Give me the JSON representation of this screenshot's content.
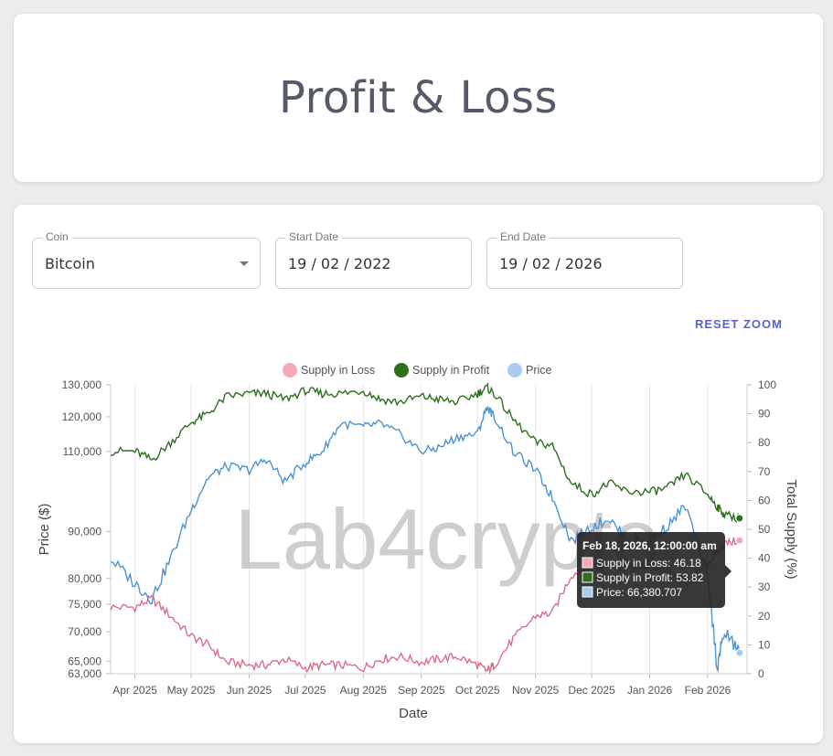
{
  "header": {
    "title": "Profit & Loss"
  },
  "filters": {
    "coin": {
      "label": "Coin",
      "value": "Bitcoin"
    },
    "start_date": {
      "label": "Start Date",
      "value": "19 / 02 / 2022"
    },
    "end_date": {
      "label": "End Date",
      "value": "19 / 02 / 2026"
    }
  },
  "reset_zoom_label": "RESET ZOOM",
  "watermark": "Lab4crypto",
  "tooltip": {
    "title": "Feb 18, 2026, 12:00:00 am",
    "lines": [
      "Supply in Loss: 46.18",
      "Supply in Profit: 53.82",
      "Price: 66,380.707"
    ]
  },
  "colors": {
    "loss": "#dc6e86",
    "profit": "#2d6f1c",
    "price": "#4d93d2",
    "loss_legend": "#f4a9b8",
    "profit_legend": "#2d6f1c",
    "price_legend": "#a9cbef"
  },
  "chart_data": {
    "type": "line",
    "xlabel": "Date",
    "ylabel_left": "Price ($)",
    "ylabel_right": "Total Supply (%)",
    "x_ticks": [
      "Apr 2025",
      "May 2025",
      "Jun 2025",
      "Jul 2025",
      "Aug 2025",
      "Sep 2025",
      "Oct 2025",
      "Nov 2025",
      "Dec 2025",
      "Jan 2026",
      "Feb 2026"
    ],
    "y_left_ticks": [
      63000,
      65000,
      70000,
      75000,
      80000,
      90000,
      110000,
      120000,
      130000
    ],
    "y_left_tick_labels": [
      "63,000",
      "65,000",
      "70,000",
      "75,000",
      "80,000",
      "90,000",
      "110,000",
      "120,000",
      "130,000"
    ],
    "y_left_scale": "log",
    "y_left_range": [
      63000,
      130000
    ],
    "y_right_ticks": [
      0,
      10,
      20,
      30,
      40,
      50,
      60,
      70,
      80,
      90,
      100
    ],
    "y_right_range": [
      0,
      100
    ],
    "legend": [
      "Supply in Loss",
      "Supply in Profit",
      "Price"
    ],
    "legend_position": "top",
    "grid": "vertical",
    "x": [
      "2025-03-19",
      "2025-04-01",
      "2025-04-10",
      "2025-04-20",
      "2025-05-01",
      "2025-05-10",
      "2025-05-20",
      "2025-06-01",
      "2025-06-10",
      "2025-06-20",
      "2025-07-01",
      "2025-07-10",
      "2025-07-20",
      "2025-08-01",
      "2025-08-10",
      "2025-08-20",
      "2025-09-01",
      "2025-09-10",
      "2025-09-20",
      "2025-10-01",
      "2025-10-06",
      "2025-10-10",
      "2025-10-20",
      "2025-11-01",
      "2025-11-10",
      "2025-11-20",
      "2025-12-01",
      "2025-12-10",
      "2025-12-20",
      "2026-01-01",
      "2026-01-10",
      "2026-01-20",
      "2026-02-01",
      "2026-02-06",
      "2026-02-10",
      "2026-02-18"
    ],
    "series": [
      {
        "name": "Supply in Loss",
        "axis": "right",
        "values": [
          23,
          23,
          26,
          20,
          13,
          10,
          4,
          3,
          3,
          5,
          2,
          3,
          3,
          2,
          5,
          6,
          4,
          5,
          6,
          3,
          1,
          3,
          12,
          20,
          21,
          34,
          38,
          34,
          37,
          37,
          36,
          31,
          38,
          42,
          45,
          46.18
        ]
      },
      {
        "name": "Supply in Profit",
        "axis": "left",
        "values": [
          77,
          77,
          74,
          80,
          87,
          90,
          96,
          97,
          97,
          95,
          98,
          97,
          97,
          98,
          95,
          94,
          96,
          95,
          94,
          97,
          99,
          97,
          88,
          80,
          79,
          66,
          62,
          66,
          63,
          63,
          64,
          69,
          62,
          58,
          55,
          53.82
        ]
      },
      {
        "name": "Price",
        "axis": "left",
        "values": [
          84000,
          79000,
          76000,
          84000,
          95000,
          103000,
          106000,
          105000,
          108000,
          102000,
          107000,
          110000,
          118000,
          117000,
          118000,
          115000,
          110000,
          111000,
          114000,
          115000,
          123000,
          120000,
          110000,
          105000,
          98000,
          88000,
          91000,
          93000,
          88000,
          88000,
          91000,
          96000,
          80000,
          64000,
          70000,
          66380.707
        ]
      }
    ]
  }
}
